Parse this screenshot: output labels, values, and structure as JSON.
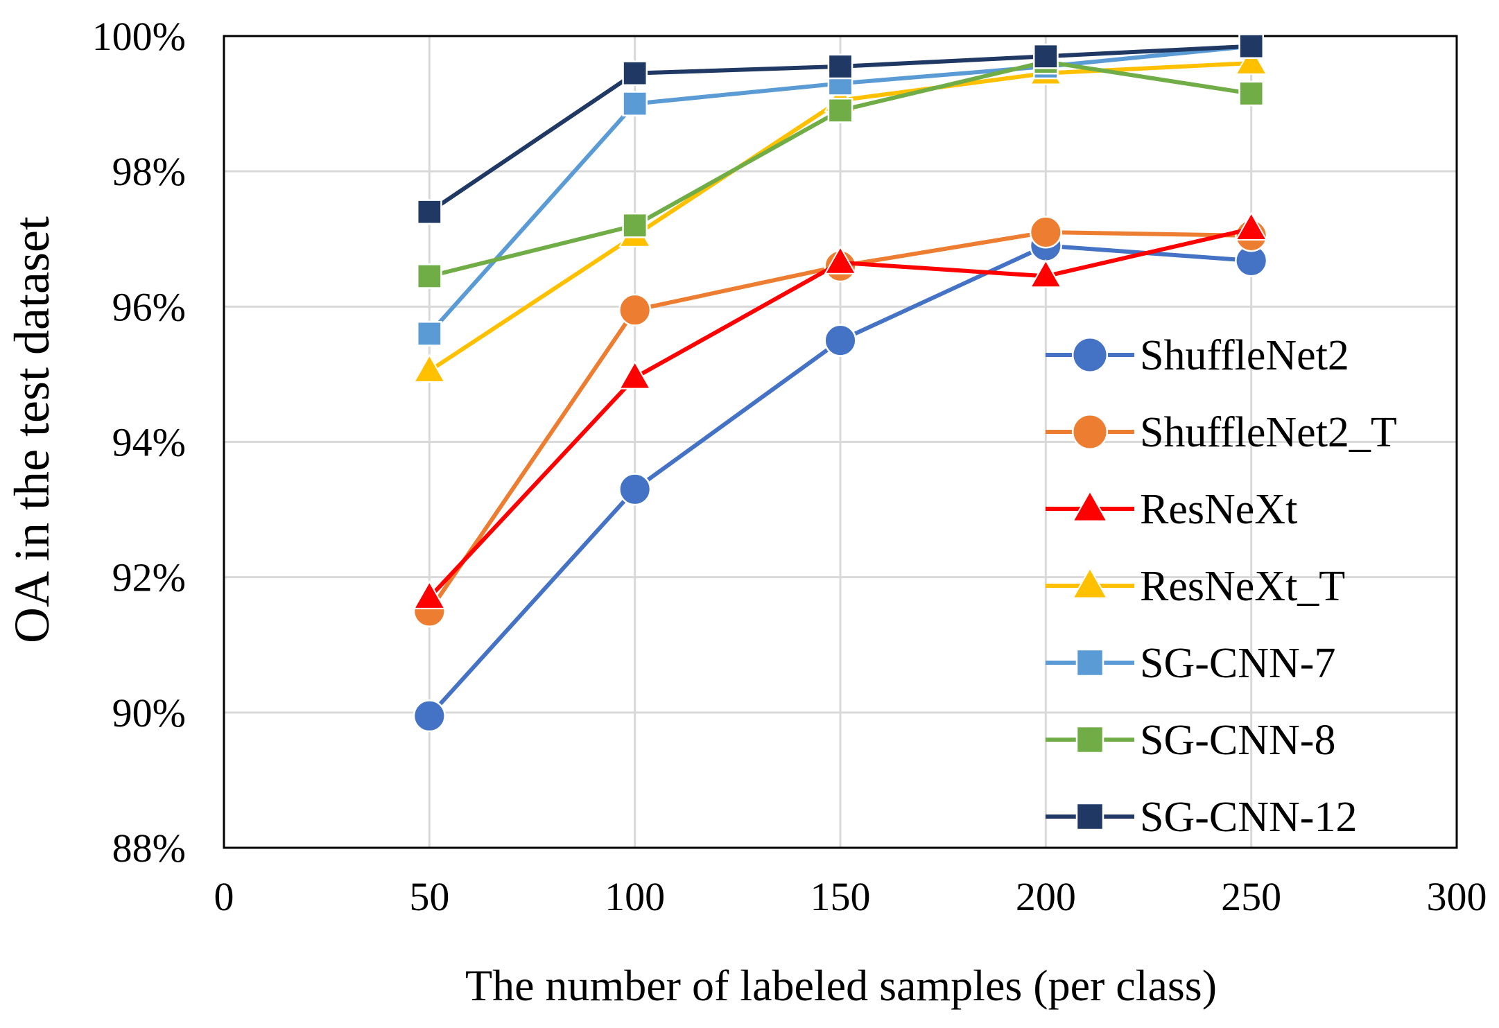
{
  "chart_data": {
    "type": "line",
    "title": "",
    "xlabel": "The number of labeled samples (per class)",
    "ylabel": "OA  in the test dataset",
    "xlim": [
      0,
      300
    ],
    "ylim": [
      88,
      100
    ],
    "x_ticks": [
      0,
      50,
      100,
      150,
      200,
      250,
      300
    ],
    "x_tick_labels": [
      "0",
      "50",
      "100",
      "150",
      "200",
      "250",
      "300"
    ],
    "y_ticks": [
      88,
      90,
      92,
      94,
      96,
      98,
      100
    ],
    "y_tick_labels": [
      "88%",
      "90%",
      "92%",
      "94%",
      "96%",
      "98%",
      "100%"
    ],
    "grid": true,
    "legend_position": "right",
    "x": [
      50,
      100,
      150,
      200,
      250
    ],
    "series": [
      {
        "name": "ShuffleNet2",
        "color": "#4472C4",
        "marker": "circle",
        "values": [
          89.95,
          93.3,
          95.5,
          96.9,
          96.68
        ]
      },
      {
        "name": "ShuffleNet2_T",
        "color": "#ED7D31",
        "marker": "circle",
        "values": [
          91.5,
          95.95,
          96.6,
          97.1,
          97.05
        ]
      },
      {
        "name": "ResNeXt",
        "color": "#FF0000",
        "marker": "triangle",
        "values": [
          91.7,
          94.95,
          96.65,
          96.45,
          97.15
        ]
      },
      {
        "name": "ResNeXt_T",
        "color": "#FFC000",
        "marker": "triangle",
        "values": [
          95.05,
          97.05,
          99.05,
          99.45,
          99.6
        ]
      },
      {
        "name": "SG-CNN-7",
        "color": "#5B9BD5",
        "marker": "square",
        "values": [
          95.6,
          99.0,
          99.3,
          99.55,
          99.85
        ]
      },
      {
        "name": "SG-CNN-8",
        "color": "#70AD47",
        "marker": "square",
        "values": [
          96.45,
          97.2,
          98.9,
          99.62,
          99.15
        ]
      },
      {
        "name": "SG-CNN-12",
        "color": "#203864",
        "marker": "square",
        "values": [
          97.4,
          99.45,
          99.55,
          99.7,
          99.85
        ]
      }
    ]
  }
}
